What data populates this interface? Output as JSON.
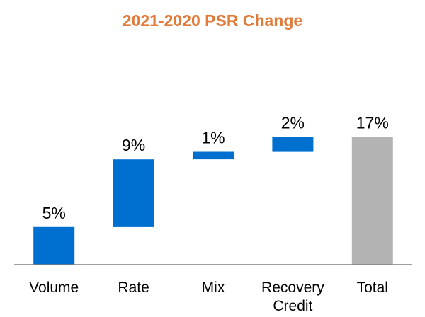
{
  "chart_data": {
    "type": "bar",
    "subtype": "waterfall",
    "title": "2021-2020 PSR Change",
    "categories": [
      "Volume",
      "Rate",
      "Mix",
      "Recovery Credit",
      "Total"
    ],
    "values": [
      5,
      9,
      1,
      2,
      17
    ],
    "value_labels": [
      "5%",
      "9%",
      "1%",
      "2%",
      "17%"
    ],
    "category_lines": [
      [
        "Volume"
      ],
      [
        "Rate"
      ],
      [
        "Mix"
      ],
      [
        "Recovery",
        "Credit"
      ],
      [
        "Total"
      ]
    ],
    "xlabel": "",
    "ylabel": "",
    "ylim": [
      0,
      19
    ],
    "grid": false,
    "legend": "none",
    "colors": {
      "title": "#E07B39",
      "increase": "#0070D0",
      "total": "#B3B3B3",
      "axis": "#808080"
    }
  }
}
